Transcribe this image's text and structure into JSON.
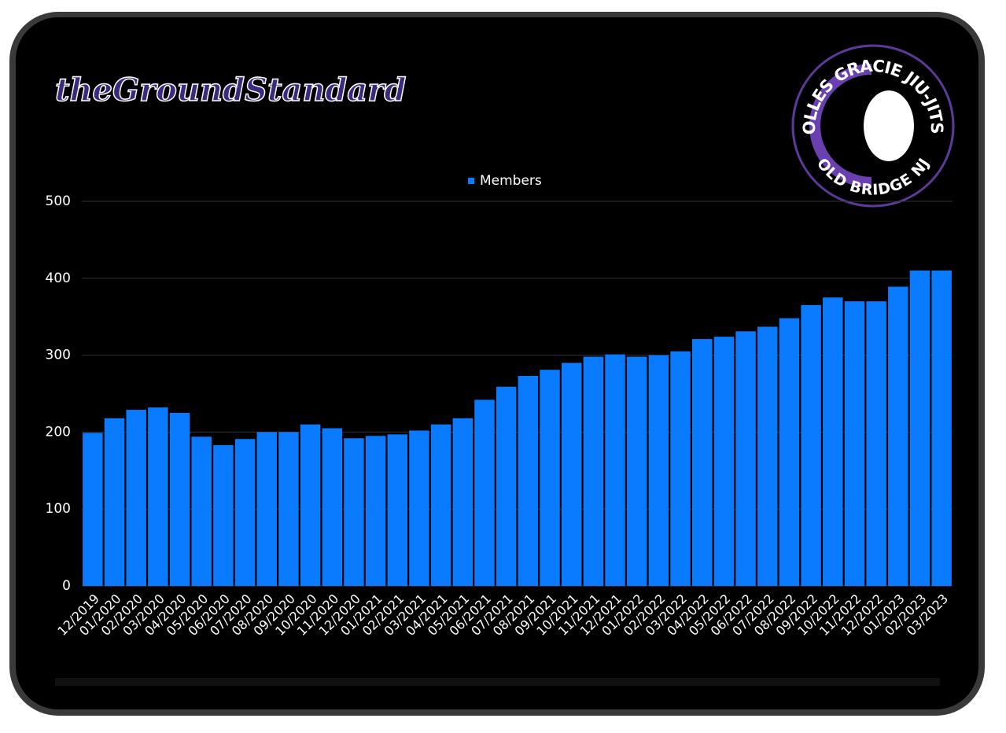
{
  "logos": {
    "left": "theGroundStandard",
    "right_top": "ROLLES GRACIE JIU-JITSU",
    "right_bottom": "OLD BRIDGE NJ"
  },
  "chart_data": {
    "type": "bar",
    "categories": [
      "12/2019",
      "01/2020",
      "02/2020",
      "03/2020",
      "04/2020",
      "05/2020",
      "06/2020",
      "07/2020",
      "08/2020",
      "09/2020",
      "10/2020",
      "11/2020",
      "12/2020",
      "01/2021",
      "02/2021",
      "03/2021",
      "04/2021",
      "05/2021",
      "06/2021",
      "07/2021",
      "08/2021",
      "09/2021",
      "10/2021",
      "11/2021",
      "12/2021",
      "01/2022",
      "02/2022",
      "03/2022",
      "04/2022",
      "05/2022",
      "06/2022",
      "07/2022",
      "08/2022",
      "09/2022",
      "10/2022",
      "11/2022",
      "12/2022",
      "01/2023",
      "02/2023",
      "03/2023"
    ],
    "series": [
      {
        "name": "Members",
        "color": "#0a7bff",
        "values": [
          199,
          218,
          229,
          232,
          225,
          194,
          183,
          191,
          200,
          200,
          210,
          205,
          192,
          195,
          197,
          202,
          210,
          218,
          242,
          259,
          273,
          281,
          290,
          298,
          301,
          298,
          300,
          305,
          321,
          324,
          331,
          337,
          348,
          365,
          375,
          370,
          370,
          389,
          410,
          410
        ]
      }
    ],
    "ylim": [
      0,
      500
    ],
    "yticks": [
      0,
      100,
      200,
      300,
      400,
      500
    ],
    "grid": true,
    "legend": "top"
  }
}
